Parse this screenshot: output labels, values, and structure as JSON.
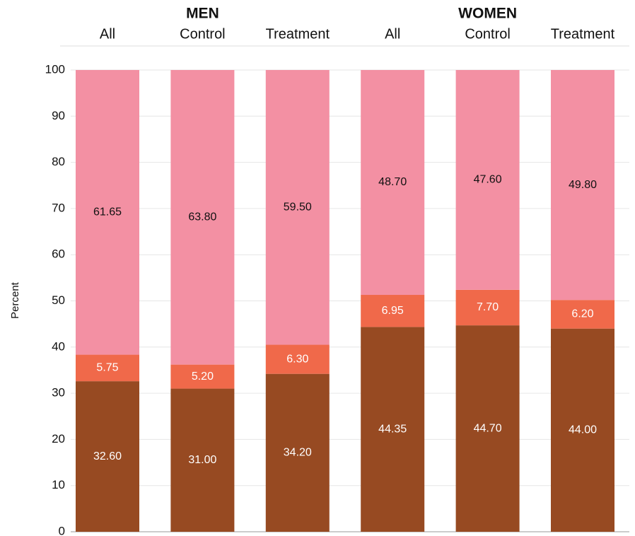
{
  "chart_data": {
    "type": "stacked_bar",
    "groups": [
      "MEN",
      "WOMEN"
    ],
    "categories": [
      "All",
      "Control",
      "Treatment",
      "All",
      "Control",
      "Treatment"
    ],
    "y_label": "Percent",
    "ylim": [
      0,
      100
    ],
    "yticks": [
      0,
      10,
      20,
      30,
      40,
      50,
      60,
      70,
      80,
      90,
      100
    ],
    "grid": true,
    "series": [
      {
        "color": "#974a22",
        "label_color": "#ffffff",
        "values": [
          32.6,
          31.0,
          34.2,
          44.35,
          44.7,
          44.0
        ],
        "value_labels": [
          "32.60",
          "31.00",
          "34.20",
          "44.35",
          "44.70",
          "44.00"
        ]
      },
      {
        "color": "#f0694a",
        "label_color": "#ffffff",
        "values": [
          5.75,
          5.2,
          6.3,
          6.95,
          7.7,
          6.2
        ],
        "value_labels": [
          "5.75",
          "5.20",
          "6.30",
          "6.95",
          "7.70",
          "6.20"
        ]
      },
      {
        "color": "#f390a3",
        "label_color": "#111111",
        "values": [
          61.65,
          63.8,
          59.5,
          48.7,
          47.6,
          49.8
        ],
        "value_labels": [
          "61.65",
          "63.80",
          "59.50",
          "48.70",
          "47.60",
          "49.80"
        ]
      }
    ]
  }
}
